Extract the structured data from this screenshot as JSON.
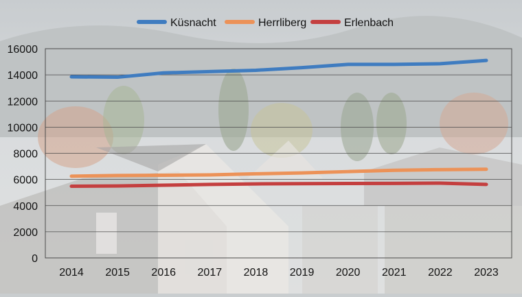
{
  "chart_data": {
    "type": "line",
    "title": "",
    "xlabel": "",
    "ylabel": "",
    "categories": [
      "2014",
      "2015",
      "2016",
      "2017",
      "2018",
      "2019",
      "2020",
      "2021",
      "2022",
      "2023"
    ],
    "ylim": [
      0,
      16000
    ],
    "yticks": [
      0,
      2000,
      4000,
      6000,
      8000,
      10000,
      12000,
      14000,
      16000
    ],
    "ytick_labels": [
      "0",
      "2000",
      "4000",
      "6000",
      "8000",
      "10000",
      "12000",
      "14000",
      "16000"
    ],
    "grid": true,
    "legend_position": "top-center",
    "series": [
      {
        "name": "Küsnacht",
        "color": "#3f7cc0",
        "values": [
          13850,
          13820,
          14150,
          14250,
          14350,
          14550,
          14800,
          14800,
          14850,
          15100
        ]
      },
      {
        "name": "Herrliberg",
        "color": "#ec9258",
        "values": [
          6250,
          6300,
          6320,
          6350,
          6430,
          6500,
          6600,
          6700,
          6750,
          6780
        ]
      },
      {
        "name": "Erlenbach",
        "color": "#c43f3f",
        "values": [
          5480,
          5500,
          5560,
          5620,
          5660,
          5680,
          5690,
          5700,
          5720,
          5620
        ]
      }
    ]
  }
}
